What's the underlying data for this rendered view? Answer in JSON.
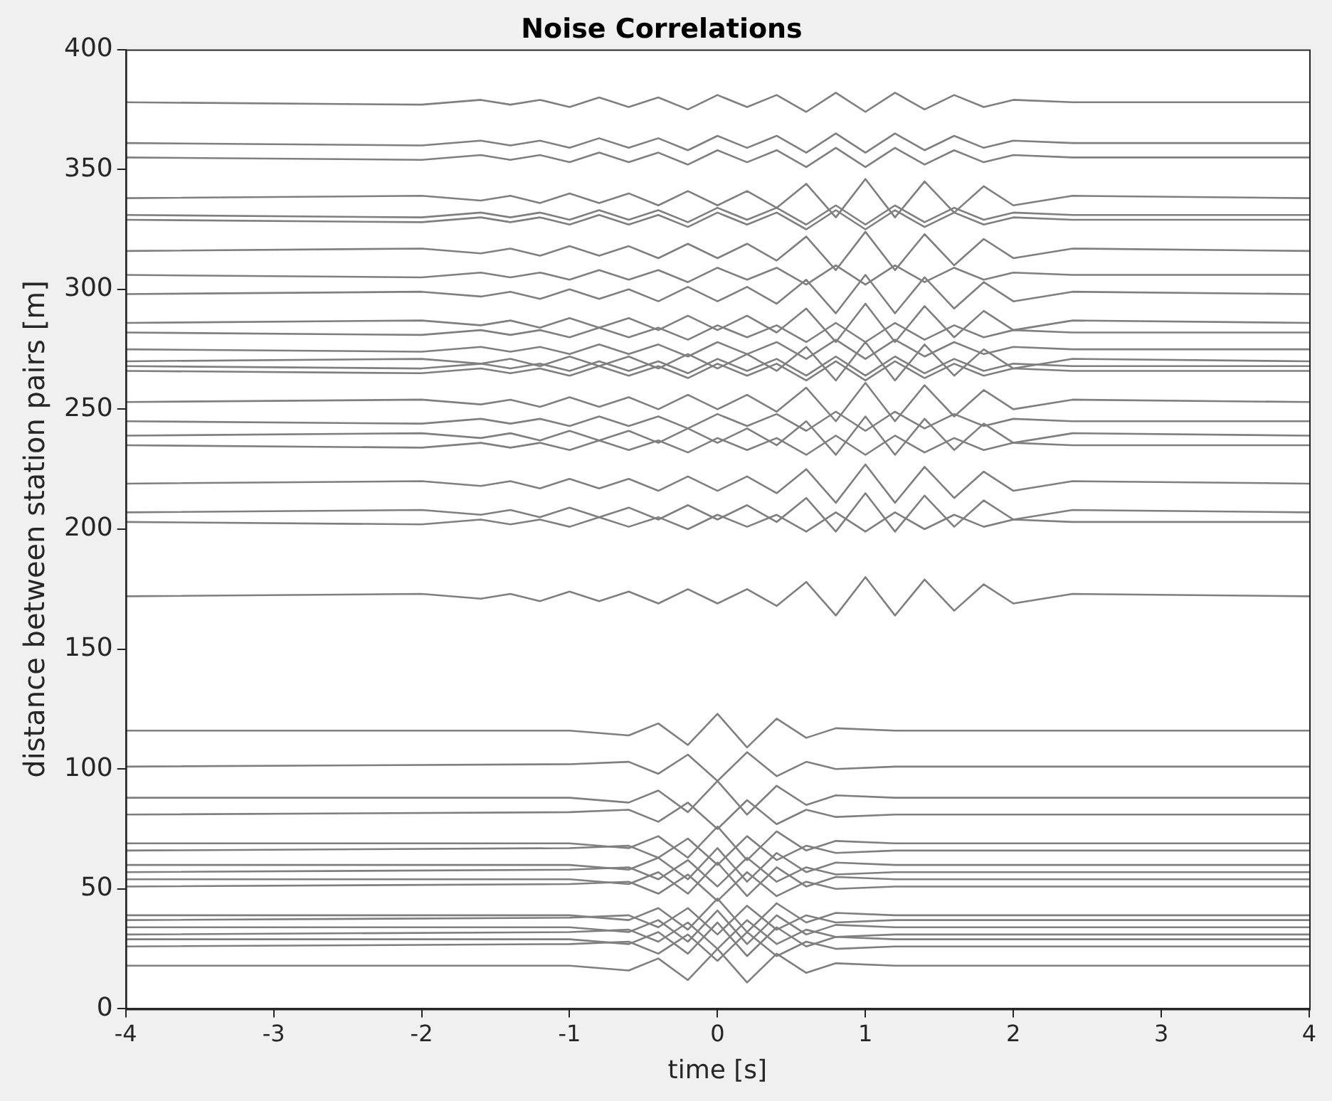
{
  "chart_data": {
    "type": "line",
    "title": "Noise Correlations",
    "xlabel": "time [s]",
    "ylabel": "distance between station pairs [m]",
    "xlim": [
      -4,
      4
    ],
    "xticks": [
      -4,
      -3,
      -2,
      -1,
      0,
      1,
      2,
      3,
      4
    ],
    "ylim": [
      0,
      400
    ],
    "yticks": [
      0,
      50,
      100,
      150,
      200,
      250,
      300,
      350,
      400
    ],
    "marker": "none",
    "line_style": "solid",
    "series": [
      {
        "color": "#7f7f7f",
        "x": [
          -4,
          -2,
          -1.6,
          -1.4,
          -1.2,
          -1,
          -0.8,
          -0.6,
          -0.4,
          -0.2,
          0,
          0.2,
          0.4,
          0.6,
          0.8,
          1,
          1.2,
          1.4,
          1.6,
          1.8,
          2,
          2.4,
          4
        ],
        "values": [
          378,
          377,
          379,
          377,
          379,
          376,
          380,
          376,
          380,
          375,
          381,
          376,
          381,
          374,
          382,
          374,
          382,
          375,
          381,
          376,
          379,
          378,
          378
        ]
      },
      {
        "color": "#7f7f7f",
        "x": [
          -4,
          -2,
          -1.6,
          -1.4,
          -1.2,
          -1,
          -0.8,
          -0.6,
          -0.4,
          -0.2,
          0,
          0.2,
          0.4,
          0.6,
          0.8,
          1,
          1.2,
          1.4,
          1.6,
          1.8,
          2,
          2.4,
          4
        ],
        "values": [
          361,
          360,
          362,
          360,
          362,
          359,
          363,
          359,
          363,
          358,
          364,
          359,
          364,
          357,
          365,
          357,
          365,
          358,
          364,
          359,
          362,
          361,
          361
        ]
      },
      {
        "color": "#7f7f7f",
        "x": [
          -4,
          -2,
          -1.6,
          -1.4,
          -1.2,
          -1,
          -0.8,
          -0.6,
          -0.4,
          -0.2,
          0,
          0.2,
          0.4,
          0.6,
          0.8,
          1,
          1.2,
          1.4,
          1.6,
          1.8,
          2,
          2.4,
          4
        ],
        "values": [
          355,
          354,
          356,
          354,
          356,
          353,
          357,
          353,
          357,
          352,
          358,
          353,
          358,
          351,
          359,
          351,
          359,
          352,
          358,
          353,
          356,
          355,
          355
        ]
      },
      {
        "color": "#7f7f7f",
        "x": [
          -4,
          -2,
          -1.6,
          -1.4,
          -1.2,
          -1,
          -0.8,
          -0.6,
          -0.4,
          -0.2,
          0,
          0.2,
          0.4,
          0.6,
          0.8,
          1,
          1.2,
          1.4,
          1.6,
          1.8,
          2,
          2.4,
          4
        ],
        "values": [
          338,
          339,
          337,
          339,
          336,
          340,
          336,
          340,
          335,
          341,
          335,
          341,
          334,
          344,
          330,
          346,
          330,
          345,
          332,
          343,
          335,
          339,
          338
        ]
      },
      {
        "color": "#7f7f7f",
        "x": [
          -4,
          -2,
          -1.6,
          -1.4,
          -1.2,
          -1,
          -0.8,
          -0.6,
          -0.4,
          -0.2,
          0,
          0.2,
          0.4,
          0.6,
          0.8,
          1,
          1.2,
          1.4,
          1.6,
          1.8,
          2,
          2.4,
          4
        ],
        "values": [
          331,
          330,
          332,
          330,
          332,
          329,
          333,
          329,
          333,
          328,
          334,
          329,
          334,
          327,
          335,
          327,
          335,
          328,
          334,
          329,
          332,
          331,
          331
        ]
      },
      {
        "color": "#7f7f7f",
        "x": [
          -4,
          -2,
          -1.6,
          -1.4,
          -1.2,
          -1,
          -0.8,
          -0.6,
          -0.4,
          -0.2,
          0,
          0.2,
          0.4,
          0.6,
          0.8,
          1,
          1.2,
          1.4,
          1.6,
          1.8,
          2,
          2.4,
          4
        ],
        "values": [
          329,
          328,
          330,
          328,
          330,
          327,
          331,
          327,
          331,
          326,
          332,
          327,
          332,
          325,
          333,
          325,
          333,
          326,
          332,
          327,
          330,
          329,
          329
        ]
      },
      {
        "color": "#7f7f7f",
        "x": [
          -4,
          -2,
          -1.6,
          -1.4,
          -1.2,
          -1,
          -0.8,
          -0.6,
          -0.4,
          -0.2,
          0,
          0.2,
          0.4,
          0.6,
          0.8,
          1,
          1.2,
          1.4,
          1.6,
          1.8,
          2,
          2.4,
          4
        ],
        "values": [
          316,
          317,
          315,
          317,
          314,
          318,
          314,
          318,
          313,
          319,
          313,
          319,
          312,
          322,
          308,
          324,
          308,
          323,
          310,
          321,
          313,
          317,
          316
        ]
      },
      {
        "color": "#7f7f7f",
        "x": [
          -4,
          -2,
          -1.6,
          -1.4,
          -1.2,
          -1,
          -0.8,
          -0.6,
          -0.4,
          -0.2,
          0,
          0.2,
          0.4,
          0.6,
          0.8,
          1,
          1.2,
          1.4,
          1.6,
          1.8,
          2,
          2.4,
          4
        ],
        "values": [
          306,
          305,
          307,
          305,
          307,
          304,
          308,
          304,
          308,
          303,
          309,
          304,
          309,
          302,
          310,
          302,
          310,
          303,
          309,
          304,
          307,
          306,
          306
        ]
      },
      {
        "color": "#7f7f7f",
        "x": [
          -4,
          -2,
          -1.6,
          -1.4,
          -1.2,
          -1,
          -0.8,
          -0.6,
          -0.4,
          -0.2,
          0,
          0.2,
          0.4,
          0.6,
          0.8,
          1,
          1.2,
          1.4,
          1.6,
          1.8,
          2,
          2.4,
          4
        ],
        "values": [
          298,
          299,
          297,
          299,
          296,
          300,
          296,
          300,
          295,
          301,
          295,
          301,
          294,
          304,
          290,
          306,
          290,
          305,
          292,
          303,
          295,
          299,
          298
        ]
      },
      {
        "color": "#7f7f7f",
        "x": [
          -4,
          -2,
          -1.6,
          -1.4,
          -1.2,
          -1,
          -0.8,
          -0.6,
          -0.4,
          -0.2,
          0,
          0.2,
          0.4,
          0.6,
          0.8,
          1,
          1.2,
          1.4,
          1.6,
          1.8,
          2,
          2.4,
          4
        ],
        "values": [
          286,
          287,
          285,
          287,
          284,
          288,
          284,
          288,
          283,
          289,
          283,
          289,
          282,
          292,
          278,
          294,
          278,
          293,
          280,
          291,
          283,
          287,
          286
        ]
      },
      {
        "color": "#7f7f7f",
        "x": [
          -4,
          -2,
          -1.6,
          -1.4,
          -1.2,
          -1,
          -0.8,
          -0.6,
          -0.4,
          -0.2,
          0,
          0.2,
          0.4,
          0.6,
          0.8,
          1,
          1.2,
          1.4,
          1.6,
          1.8,
          2,
          2.4,
          4
        ],
        "values": [
          282,
          281,
          283,
          281,
          283,
          280,
          284,
          280,
          284,
          279,
          285,
          280,
          285,
          278,
          286,
          278,
          286,
          279,
          285,
          280,
          283,
          282,
          282
        ]
      },
      {
        "color": "#7f7f7f",
        "x": [
          -4,
          -2,
          -1.6,
          -1.4,
          -1.2,
          -1,
          -0.8,
          -0.6,
          -0.4,
          -0.2,
          0,
          0.2,
          0.4,
          0.6,
          0.8,
          1,
          1.2,
          1.4,
          1.6,
          1.8,
          2,
          2.4,
          4
        ],
        "values": [
          275,
          274,
          276,
          274,
          276,
          273,
          277,
          273,
          277,
          272,
          278,
          273,
          278,
          271,
          279,
          271,
          279,
          272,
          278,
          273,
          276,
          275,
          275
        ]
      },
      {
        "color": "#7f7f7f",
        "x": [
          -4,
          -2,
          -1.6,
          -1.4,
          -1.2,
          -1,
          -0.8,
          -0.6,
          -0.4,
          -0.2,
          0,
          0.2,
          0.4,
          0.6,
          0.8,
          1,
          1.2,
          1.4,
          1.6,
          1.8,
          2,
          2.4,
          4
        ],
        "values": [
          270,
          271,
          269,
          271,
          268,
          272,
          268,
          272,
          267,
          273,
          267,
          273,
          266,
          276,
          262,
          278,
          262,
          277,
          264,
          275,
          267,
          271,
          270
        ]
      },
      {
        "color": "#7f7f7f",
        "x": [
          -4,
          -2,
          -1.6,
          -1.4,
          -1.2,
          -1,
          -0.8,
          -0.6,
          -0.4,
          -0.2,
          0,
          0.2,
          0.4,
          0.6,
          0.8,
          1,
          1.2,
          1.4,
          1.6,
          1.8,
          2,
          2.4,
          4
        ],
        "values": [
          268,
          267,
          269,
          267,
          269,
          266,
          270,
          266,
          270,
          265,
          271,
          266,
          271,
          264,
          272,
          264,
          272,
          265,
          271,
          266,
          269,
          268,
          268
        ]
      },
      {
        "color": "#7f7f7f",
        "x": [
          -4,
          -2,
          -1.6,
          -1.4,
          -1.2,
          -1,
          -0.8,
          -0.6,
          -0.4,
          -0.2,
          0,
          0.2,
          0.4,
          0.6,
          0.8,
          1,
          1.2,
          1.4,
          1.6,
          1.8,
          2,
          2.4,
          4
        ],
        "values": [
          266,
          265,
          267,
          265,
          267,
          264,
          268,
          264,
          268,
          263,
          269,
          264,
          269,
          262,
          270,
          262,
          270,
          263,
          269,
          264,
          267,
          266,
          266
        ]
      },
      {
        "color": "#7f7f7f",
        "x": [
          -4,
          -2,
          -1.6,
          -1.4,
          -1.2,
          -1,
          -0.8,
          -0.6,
          -0.4,
          -0.2,
          0,
          0.2,
          0.4,
          0.6,
          0.8,
          1,
          1.2,
          1.4,
          1.6,
          1.8,
          2,
          2.4,
          4
        ],
        "values": [
          253,
          254,
          252,
          254,
          251,
          255,
          251,
          255,
          250,
          256,
          250,
          256,
          249,
          259,
          245,
          261,
          245,
          260,
          247,
          258,
          250,
          254,
          253
        ]
      },
      {
        "color": "#7f7f7f",
        "x": [
          -4,
          -2,
          -1.6,
          -1.4,
          -1.2,
          -1,
          -0.8,
          -0.6,
          -0.4,
          -0.2,
          0,
          0.2,
          0.4,
          0.6,
          0.8,
          1,
          1.2,
          1.4,
          1.6,
          1.8,
          2,
          2.4,
          4
        ],
        "values": [
          245,
          244,
          246,
          244,
          246,
          243,
          247,
          243,
          247,
          242,
          248,
          243,
          248,
          241,
          249,
          241,
          249,
          242,
          248,
          243,
          246,
          245,
          245
        ]
      },
      {
        "color": "#7f7f7f",
        "x": [
          -4,
          -2,
          -1.6,
          -1.4,
          -1.2,
          -1,
          -0.8,
          -0.6,
          -0.4,
          -0.2,
          0,
          0.2,
          0.4,
          0.6,
          0.8,
          1,
          1.2,
          1.4,
          1.6,
          1.8,
          2,
          2.4,
          4
        ],
        "values": [
          239,
          240,
          238,
          240,
          237,
          241,
          237,
          241,
          236,
          242,
          236,
          242,
          235,
          245,
          231,
          247,
          231,
          246,
          233,
          244,
          236,
          240,
          239
        ]
      },
      {
        "color": "#7f7f7f",
        "x": [
          -4,
          -2,
          -1.6,
          -1.4,
          -1.2,
          -1,
          -0.8,
          -0.6,
          -0.4,
          -0.2,
          0,
          0.2,
          0.4,
          0.6,
          0.8,
          1,
          1.2,
          1.4,
          1.6,
          1.8,
          2,
          2.4,
          4
        ],
        "values": [
          235,
          234,
          236,
          234,
          236,
          233,
          237,
          233,
          237,
          232,
          238,
          233,
          238,
          231,
          239,
          231,
          239,
          232,
          238,
          233,
          236,
          235,
          235
        ]
      },
      {
        "color": "#7f7f7f",
        "x": [
          -4,
          -2,
          -1.6,
          -1.4,
          -1.2,
          -1,
          -0.8,
          -0.6,
          -0.4,
          -0.2,
          0,
          0.2,
          0.4,
          0.6,
          0.8,
          1,
          1.2,
          1.4,
          1.6,
          1.8,
          2,
          2.4,
          4
        ],
        "values": [
          219,
          220,
          218,
          220,
          217,
          221,
          217,
          221,
          216,
          222,
          216,
          222,
          215,
          225,
          211,
          227,
          211,
          226,
          213,
          224,
          216,
          220,
          219
        ]
      },
      {
        "color": "#7f7f7f",
        "x": [
          -4,
          -2,
          -1.6,
          -1.4,
          -1.2,
          -1,
          -0.8,
          -0.6,
          -0.4,
          -0.2,
          0,
          0.2,
          0.4,
          0.6,
          0.8,
          1,
          1.2,
          1.4,
          1.6,
          1.8,
          2,
          2.4,
          4
        ],
        "values": [
          207,
          208,
          206,
          208,
          205,
          209,
          205,
          209,
          204,
          210,
          204,
          210,
          203,
          213,
          199,
          215,
          199,
          214,
          201,
          212,
          204,
          208,
          207
        ]
      },
      {
        "color": "#7f7f7f",
        "x": [
          -4,
          -2,
          -1.6,
          -1.4,
          -1.2,
          -1,
          -0.8,
          -0.6,
          -0.4,
          -0.2,
          0,
          0.2,
          0.4,
          0.6,
          0.8,
          1,
          1.2,
          1.4,
          1.6,
          1.8,
          2,
          2.4,
          4
        ],
        "values": [
          203,
          202,
          204,
          202,
          204,
          201,
          205,
          201,
          205,
          200,
          206,
          201,
          206,
          199,
          207,
          199,
          207,
          200,
          206,
          201,
          204,
          203,
          203
        ]
      },
      {
        "color": "#7f7f7f",
        "x": [
          -4,
          -2,
          -1.6,
          -1.4,
          -1.2,
          -1,
          -0.8,
          -0.6,
          -0.4,
          -0.2,
          0,
          0.2,
          0.4,
          0.6,
          0.8,
          1,
          1.2,
          1.4,
          1.6,
          1.8,
          2,
          2.4,
          4
        ],
        "values": [
          172,
          173,
          171,
          173,
          170,
          174,
          170,
          174,
          169,
          175,
          169,
          175,
          168,
          178,
          164,
          180,
          164,
          179,
          166,
          177,
          169,
          173,
          172
        ]
      },
      {
        "color": "#7f7f7f",
        "x": [
          -4,
          -1,
          -0.6,
          -0.4,
          -0.2,
          0,
          0.2,
          0.4,
          0.6,
          0.8,
          1.2,
          4
        ],
        "values": [
          116,
          116,
          114,
          119,
          110,
          123,
          109,
          121,
          113,
          117,
          116,
          116
        ]
      },
      {
        "color": "#7f7f7f",
        "x": [
          -4,
          -1,
          -0.6,
          -0.4,
          -0.2,
          0,
          0.2,
          0.4,
          0.6,
          0.8,
          1.2,
          4
        ],
        "values": [
          101,
          102,
          103,
          98,
          106,
          95,
          107,
          97,
          103,
          100,
          101,
          101
        ]
      },
      {
        "color": "#7f7f7f",
        "x": [
          -4,
          -1,
          -0.6,
          -0.4,
          -0.2,
          0,
          0.2,
          0.4,
          0.6,
          0.8,
          1.2,
          4
        ],
        "values": [
          88,
          88,
          86,
          91,
          82,
          95,
          81,
          93,
          85,
          89,
          88,
          88
        ]
      },
      {
        "color": "#7f7f7f",
        "x": [
          -4,
          -1,
          -0.6,
          -0.4,
          -0.2,
          0,
          0.2,
          0.4,
          0.6,
          0.8,
          1.2,
          4
        ],
        "values": [
          81,
          82,
          83,
          78,
          86,
          75,
          87,
          77,
          83,
          80,
          81,
          81
        ]
      },
      {
        "color": "#7f7f7f",
        "x": [
          -4,
          -1,
          -0.6,
          -0.4,
          -0.2,
          0,
          0.2,
          0.4,
          0.6,
          0.8,
          1.2,
          4
        ],
        "values": [
          69,
          69,
          67,
          72,
          63,
          76,
          62,
          74,
          66,
          70,
          69,
          69
        ]
      },
      {
        "color": "#7f7f7f",
        "x": [
          -4,
          -1,
          -0.6,
          -0.4,
          -0.2,
          0,
          0.2,
          0.4,
          0.6,
          0.8,
          1.2,
          4
        ],
        "values": [
          66,
          67,
          68,
          63,
          71,
          60,
          72,
          62,
          68,
          65,
          66,
          66
        ]
      },
      {
        "color": "#7f7f7f",
        "x": [
          -4,
          -1,
          -0.6,
          -0.4,
          -0.2,
          0,
          0.2,
          0.4,
          0.6,
          0.8,
          1.2,
          4
        ],
        "values": [
          60,
          60,
          58,
          63,
          54,
          67,
          53,
          65,
          57,
          61,
          60,
          60
        ]
      },
      {
        "color": "#7f7f7f",
        "x": [
          -4,
          -1,
          -0.6,
          -0.4,
          -0.2,
          0,
          0.2,
          0.4,
          0.6,
          0.8,
          1.2,
          4
        ],
        "values": [
          57,
          58,
          59,
          54,
          62,
          51,
          63,
          53,
          59,
          56,
          57,
          57
        ]
      },
      {
        "color": "#7f7f7f",
        "x": [
          -4,
          -1,
          -0.6,
          -0.4,
          -0.2,
          0,
          0.2,
          0.4,
          0.6,
          0.8,
          1.2,
          4
        ],
        "values": [
          54,
          54,
          52,
          57,
          48,
          61,
          47,
          59,
          51,
          55,
          54,
          54
        ]
      },
      {
        "color": "#7f7f7f",
        "x": [
          -4,
          -1,
          -0.6,
          -0.4,
          -0.2,
          0,
          0.2,
          0.4,
          0.6,
          0.8,
          1.2,
          4
        ],
        "values": [
          51,
          52,
          53,
          48,
          56,
          45,
          57,
          47,
          53,
          50,
          51,
          51
        ]
      },
      {
        "color": "#7f7f7f",
        "x": [
          -4,
          -1,
          -0.6,
          -0.4,
          -0.2,
          0,
          0.2,
          0.4,
          0.6,
          0.8,
          1.2,
          4
        ],
        "values": [
          39,
          39,
          37,
          42,
          33,
          46,
          32,
          44,
          36,
          40,
          39,
          39
        ]
      },
      {
        "color": "#7f7f7f",
        "x": [
          -4,
          -1,
          -0.6,
          -0.4,
          -0.2,
          0,
          0.2,
          0.4,
          0.6,
          0.8,
          1.2,
          4
        ],
        "values": [
          37,
          38,
          39,
          34,
          42,
          31,
          43,
          33,
          39,
          36,
          37,
          37
        ]
      },
      {
        "color": "#7f7f7f",
        "x": [
          -4,
          -1,
          -0.6,
          -0.4,
          -0.2,
          0,
          0.2,
          0.4,
          0.6,
          0.8,
          1.2,
          4
        ],
        "values": [
          34,
          34,
          32,
          37,
          28,
          41,
          27,
          39,
          31,
          35,
          34,
          34
        ]
      },
      {
        "color": "#7f7f7f",
        "x": [
          -4,
          -1,
          -0.6,
          -0.4,
          -0.2,
          0,
          0.2,
          0.4,
          0.6,
          0.8,
          1.2,
          4
        ],
        "values": [
          31,
          32,
          33,
          28,
          36,
          25,
          37,
          27,
          33,
          30,
          31,
          31
        ]
      },
      {
        "color": "#7f7f7f",
        "x": [
          -4,
          -1,
          -0.6,
          -0.4,
          -0.2,
          0,
          0.2,
          0.4,
          0.6,
          0.8,
          1.2,
          4
        ],
        "values": [
          29,
          29,
          27,
          32,
          23,
          36,
          22,
          34,
          26,
          30,
          29,
          29
        ]
      },
      {
        "color": "#7f7f7f",
        "x": [
          -4,
          -1,
          -0.6,
          -0.4,
          -0.2,
          0,
          0.2,
          0.4,
          0.6,
          0.8,
          1.2,
          4
        ],
        "values": [
          26,
          27,
          28,
          23,
          31,
          20,
          32,
          22,
          28,
          25,
          26,
          26
        ]
      },
      {
        "color": "#7f7f7f",
        "x": [
          -4,
          -1,
          -0.6,
          -0.4,
          -0.2,
          0,
          0.2,
          0.4,
          0.6,
          0.8,
          1.2,
          4
        ],
        "values": [
          18,
          18,
          16,
          21,
          12,
          25,
          11,
          23,
          15,
          19,
          18,
          18
        ]
      }
    ]
  }
}
